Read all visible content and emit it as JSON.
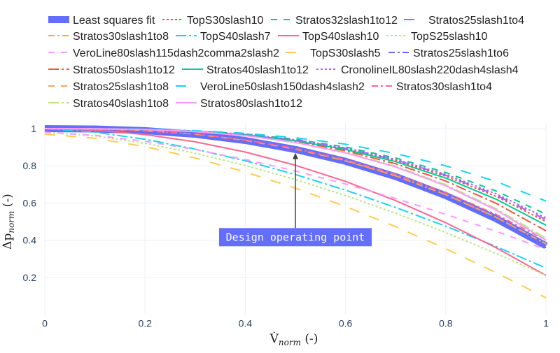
{
  "chart_data": {
    "type": "line",
    "xlabel": "V̇norm (-)",
    "xlabel_parts": {
      "main": "V̇",
      "sub": "norm",
      "suffix": " (-)"
    },
    "ylabel": "Δpnorm (-)",
    "ylabel_parts": {
      "main": "Δp",
      "sub": "norm",
      "suffix": " (-)"
    },
    "xlim": [
      0,
      1
    ],
    "ylim": [
      0,
      1.02
    ],
    "xticks": [
      0,
      0.2,
      0.4,
      0.6,
      0.8,
      1
    ],
    "xtick_labels": [
      "0",
      "0.2",
      "0.4",
      "0.6",
      "0.8",
      "1"
    ],
    "yticks": [
      0.2,
      0.4,
      0.6,
      0.8,
      1
    ],
    "ytick_labels": [
      "0.2",
      "0.4",
      "0.6",
      "0.8",
      "1"
    ],
    "grid": true,
    "legend_placement": "top",
    "x": [
      0,
      0.1,
      0.2,
      0.3,
      0.4,
      0.5,
      0.6,
      0.7,
      0.8,
      0.9,
      1
    ],
    "series": [
      {
        "name": "Least squares fit",
        "color": "#636efa",
        "dash": "band",
        "values": [
          1,
          0.998,
          0.989,
          0.969,
          0.936,
          0.888,
          0.824,
          0.742,
          0.64,
          0.516,
          0.37
        ]
      },
      {
        "name": "TopS30slash10",
        "color": "#EF553B",
        "dash": "dot",
        "values": [
          1,
          1,
          0.996,
          0.987,
          0.968,
          0.938,
          0.892,
          0.829,
          0.744,
          0.636,
          0.5
        ]
      },
      {
        "name": "Stratos32slash1to12",
        "color": "#00cc96",
        "dash": "dash",
        "values": [
          1,
          1,
          0.996,
          0.988,
          0.971,
          0.943,
          0.901,
          0.842,
          0.764,
          0.665,
          0.54
        ]
      },
      {
        "name": "Stratos25slash1to4",
        "color": "#ab63fa",
        "dash": "longdash",
        "values": [
          1,
          1,
          0.996,
          0.987,
          0.969,
          0.939,
          0.894,
          0.832,
          0.749,
          0.643,
          0.51
        ]
      },
      {
        "name": "Stratos30slash1to8",
        "color": "#FFA15A",
        "dash": "dashdot",
        "values": [
          1,
          0.998,
          0.989,
          0.97,
          0.937,
          0.89,
          0.827,
          0.746,
          0.645,
          0.524,
          0.38
        ]
      },
      {
        "name": "TopS40slash7",
        "color": "#19d3f3",
        "dash": "longdashdot",
        "values": [
          1,
          0.981,
          0.943,
          0.89,
          0.827,
          0.753,
          0.669,
          0.576,
          0.475,
          0.366,
          0.25
        ]
      },
      {
        "name": "TopS40slash10",
        "color": "#FF6692",
        "dash": "solid",
        "values": [
          1,
          0.992,
          0.968,
          0.929,
          0.874,
          0.803,
          0.716,
          0.613,
          0.494,
          0.36,
          0.21
        ]
      },
      {
        "name": "TopS25slash10",
        "color": "#B6E880",
        "dash": "dot",
        "values": [
          0.98,
          0.961,
          0.921,
          0.868,
          0.802,
          0.726,
          0.64,
          0.545,
          0.441,
          0.329,
          0.21
        ]
      },
      {
        "name": "VeroLine80slash115dash2comma2slash2",
        "color": "#FF97FF",
        "dash": "dash",
        "values": [
          0.98,
          0.964,
          0.932,
          0.888,
          0.834,
          0.772,
          0.702,
          0.624,
          0.539,
          0.448,
          0.35
        ]
      },
      {
        "name": "TopS30slash5",
        "color": "#FECB52",
        "dash": "longdash",
        "values": [
          0.97,
          0.948,
          0.903,
          0.842,
          0.767,
          0.68,
          0.581,
          0.473,
          0.354,
          0.226,
          0.09
        ]
      },
      {
        "name": "Stratos25slash1to6",
        "color": "#636efa",
        "dash": "dashdot",
        "values": [
          1,
          0.998,
          0.988,
          0.969,
          0.935,
          0.887,
          0.821,
          0.738,
          0.634,
          0.508,
          0.36
        ]
      },
      {
        "name": "Stratos50slash1to12",
        "color": "#EF553B",
        "dash": "longdashdot",
        "values": [
          1,
          0.999,
          0.996,
          0.985,
          0.965,
          0.931,
          0.881,
          0.811,
          0.718,
          0.599,
          0.45
        ]
      },
      {
        "name": "Stratos40slash1to12",
        "color": "#00cc96",
        "dash": "solid",
        "values": [
          1,
          0.999,
          0.996,
          0.986,
          0.967,
          0.935,
          0.888,
          0.822,
          0.734,
          0.621,
          0.48
        ]
      },
      {
        "name": "CronolineIL80slash220dash4slash4",
        "color": "#ab63fa",
        "dash": "dot",
        "values": [
          1,
          1,
          0.996,
          0.987,
          0.969,
          0.94,
          0.896,
          0.835,
          0.754,
          0.65,
          0.52
        ]
      },
      {
        "name": "Stratos25slash1to8",
        "color": "#FFA15A",
        "dash": "dash",
        "values": [
          1,
          0.998,
          0.989,
          0.97,
          0.937,
          0.89,
          0.827,
          0.746,
          0.645,
          0.524,
          0.38
        ]
      },
      {
        "name": "VeroLine50slash150dash4slash2",
        "color": "#19d3f3",
        "dash": "longdash",
        "values": [
          1,
          1,
          0.997,
          0.989,
          0.975,
          0.951,
          0.916,
          0.866,
          0.8,
          0.716,
          0.61
        ]
      },
      {
        "name": "Stratos30slash1to4",
        "color": "#FF6692",
        "dash": "dashdot",
        "values": [
          1,
          0.998,
          0.989,
          0.971,
          0.939,
          0.894,
          0.833,
          0.754,
          0.657,
          0.539,
          0.4
        ]
      },
      {
        "name": "Stratos40slash1to8",
        "color": "#B6E880",
        "dash": "longdashdot",
        "values": [
          1,
          0.999,
          0.995,
          0.984,
          0.962,
          0.926,
          0.873,
          0.798,
          0.698,
          0.57,
          0.41
        ]
      },
      {
        "name": "Stratos80slash1to12",
        "color": "#FF97FF",
        "dash": "solid",
        "values": [
          1,
          0.999,
          0.995,
          0.984,
          0.962,
          0.925,
          0.87,
          0.794,
          0.693,
          0.563,
          0.4
        ]
      }
    ],
    "annotations": [
      {
        "text": "Design operating point",
        "x": 0.5,
        "y": 0.87,
        "label_y": 0.42,
        "bgcolor": "#636efa"
      }
    ]
  }
}
